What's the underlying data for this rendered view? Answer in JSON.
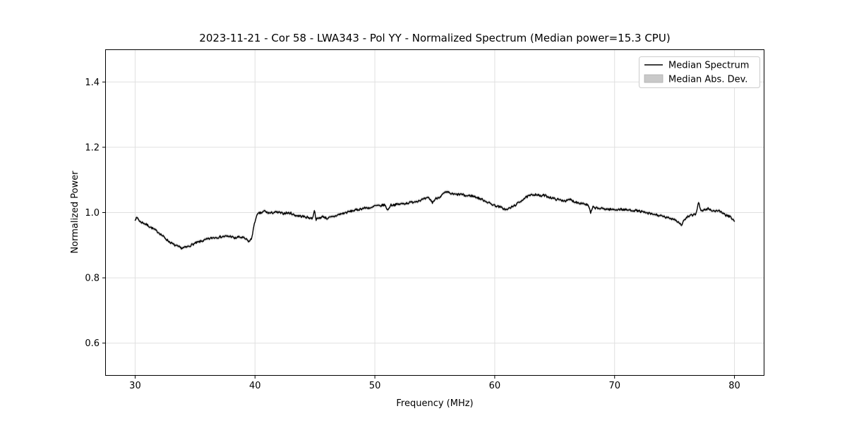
{
  "chart_data": {
    "type": "line",
    "title": "2023-11-21 - Cor 58 - LWA343 - Pol YY - Normalized Spectrum (Median power=15.3 CPU)",
    "xlabel": "Frequency (MHz)",
    "ylabel": "Normalized Power",
    "xlim": [
      27.5,
      82.5
    ],
    "ylim": [
      0.5,
      1.5
    ],
    "xticks": [
      30,
      40,
      50,
      60,
      70,
      80
    ],
    "yticks": [
      {
        "v": 0.6,
        "label": "0.6"
      },
      {
        "v": 0.8,
        "label": "0.8"
      },
      {
        "v": 1.0,
        "label": "1.0"
      },
      {
        "v": 1.2,
        "label": "1.2"
      },
      {
        "v": 1.4,
        "label": "1.4"
      }
    ],
    "grid": true,
    "legend": {
      "position": "upper right",
      "entries": [
        {
          "label": "Median Spectrum",
          "type": "line"
        },
        {
          "label": "Median Abs. Dev.",
          "type": "patch"
        }
      ]
    },
    "series": [
      {
        "name": "Median Spectrum",
        "color": "#000000",
        "anchors": [
          [
            30.0,
            0.98
          ],
          [
            30.2,
            0.984
          ],
          [
            30.4,
            0.972
          ],
          [
            30.7,
            0.968
          ],
          [
            31.0,
            0.962
          ],
          [
            31.3,
            0.955
          ],
          [
            31.6,
            0.948
          ],
          [
            32.0,
            0.938
          ],
          [
            32.4,
            0.925
          ],
          [
            32.8,
            0.912
          ],
          [
            33.2,
            0.902
          ],
          [
            33.6,
            0.895
          ],
          [
            33.9,
            0.891
          ],
          [
            34.3,
            0.894
          ],
          [
            34.7,
            0.901
          ],
          [
            35.1,
            0.907
          ],
          [
            35.5,
            0.912
          ],
          [
            36.0,
            0.918
          ],
          [
            36.5,
            0.923
          ],
          [
            37.0,
            0.925
          ],
          [
            37.5,
            0.927
          ],
          [
            38.0,
            0.927
          ],
          [
            38.3,
            0.921
          ],
          [
            38.6,
            0.925
          ],
          [
            39.0,
            0.923
          ],
          [
            39.3,
            0.917
          ],
          [
            39.5,
            0.911
          ],
          [
            39.7,
            0.919
          ],
          [
            39.9,
            0.956
          ],
          [
            40.1,
            0.988
          ],
          [
            40.3,
            0.997
          ],
          [
            40.6,
            1.0
          ],
          [
            40.8,
            1.005
          ],
          [
            41.0,
            1.0
          ],
          [
            41.3,
            0.998
          ],
          [
            41.6,
            1.001
          ],
          [
            42.0,
            1.0
          ],
          [
            42.3,
            0.997
          ],
          [
            42.6,
            0.999
          ],
          [
            43.0,
            0.998
          ],
          [
            43.3,
            0.992
          ],
          [
            43.6,
            0.99
          ],
          [
            44.0,
            0.988
          ],
          [
            44.4,
            0.985
          ],
          [
            44.8,
            0.982
          ],
          [
            44.95,
            1.008
          ],
          [
            45.1,
            0.979
          ],
          [
            45.4,
            0.984
          ],
          [
            45.7,
            0.988
          ],
          [
            46.0,
            0.982
          ],
          [
            46.3,
            0.985
          ],
          [
            46.6,
            0.988
          ],
          [
            47.0,
            0.994
          ],
          [
            47.4,
            0.998
          ],
          [
            47.8,
            1.002
          ],
          [
            48.2,
            1.006
          ],
          [
            48.6,
            1.009
          ],
          [
            49.0,
            1.013
          ],
          [
            49.4,
            1.015
          ],
          [
            49.7,
            1.013
          ],
          [
            50.0,
            1.021
          ],
          [
            50.4,
            1.02
          ],
          [
            50.8,
            1.024
          ],
          [
            51.1,
            1.007
          ],
          [
            51.3,
            1.023
          ],
          [
            51.7,
            1.024
          ],
          [
            52.1,
            1.026
          ],
          [
            52.5,
            1.028
          ],
          [
            53.0,
            1.031
          ],
          [
            53.5,
            1.035
          ],
          [
            54.0,
            1.04
          ],
          [
            54.5,
            1.045
          ],
          [
            54.8,
            1.031
          ],
          [
            55.1,
            1.043
          ],
          [
            55.5,
            1.05
          ],
          [
            55.8,
            1.06
          ],
          [
            56.1,
            1.062
          ],
          [
            56.4,
            1.057
          ],
          [
            56.8,
            1.055
          ],
          [
            57.2,
            1.056
          ],
          [
            57.6,
            1.051
          ],
          [
            58.0,
            1.052
          ],
          [
            58.4,
            1.048
          ],
          [
            58.8,
            1.042
          ],
          [
            59.2,
            1.036
          ],
          [
            59.6,
            1.028
          ],
          [
            60.0,
            1.022
          ],
          [
            60.5,
            1.016
          ],
          [
            61.0,
            1.008
          ],
          [
            61.2,
            1.013
          ],
          [
            61.5,
            1.018
          ],
          [
            62.0,
            1.03
          ],
          [
            62.4,
            1.042
          ],
          [
            62.8,
            1.05
          ],
          [
            63.2,
            1.055
          ],
          [
            63.5,
            1.056
          ],
          [
            63.8,
            1.05
          ],
          [
            64.1,
            1.053
          ],
          [
            64.5,
            1.048
          ],
          [
            65.0,
            1.042
          ],
          [
            65.5,
            1.038
          ],
          [
            66.0,
            1.036
          ],
          [
            66.3,
            1.04
          ],
          [
            66.6,
            1.034
          ],
          [
            67.0,
            1.03
          ],
          [
            67.4,
            1.028
          ],
          [
            67.8,
            1.022
          ],
          [
            68.0,
            0.999
          ],
          [
            68.2,
            1.016
          ],
          [
            68.6,
            1.013
          ],
          [
            69.0,
            1.012
          ],
          [
            69.5,
            1.01
          ],
          [
            70.0,
            1.009
          ],
          [
            70.5,
            1.01
          ],
          [
            71.0,
            1.008
          ],
          [
            71.5,
            1.007
          ],
          [
            72.0,
            1.005
          ],
          [
            72.5,
            1.0
          ],
          [
            73.0,
            0.996
          ],
          [
            73.5,
            0.993
          ],
          [
            74.0,
            0.988
          ],
          [
            74.5,
            0.983
          ],
          [
            75.0,
            0.98
          ],
          [
            75.3,
            0.971
          ],
          [
            75.6,
            0.962
          ],
          [
            75.8,
            0.977
          ],
          [
            76.1,
            0.987
          ],
          [
            76.5,
            0.992
          ],
          [
            76.8,
            0.997
          ],
          [
            77.0,
            1.033
          ],
          [
            77.2,
            1.004
          ],
          [
            77.5,
            1.008
          ],
          [
            77.8,
            1.012
          ],
          [
            78.1,
            1.007
          ],
          [
            78.4,
            1.004
          ],
          [
            78.7,
            1.007
          ],
          [
            79.0,
            0.997
          ],
          [
            79.3,
            0.992
          ],
          [
            79.6,
            0.987
          ],
          [
            79.8,
            0.982
          ],
          [
            80.0,
            0.973
          ]
        ]
      },
      {
        "name": "Median Abs. Dev.",
        "color": "#c9c9c9",
        "half_width": 0.005
      }
    ],
    "noise": {
      "seed": 7,
      "amplitude": 0.0035,
      "step_mhz": 0.05
    },
    "colors": {
      "grid": "#e0e0e0",
      "spine": "#000000",
      "background": "#ffffff",
      "legend_border": "#cccccc",
      "tick": "#000000"
    }
  }
}
